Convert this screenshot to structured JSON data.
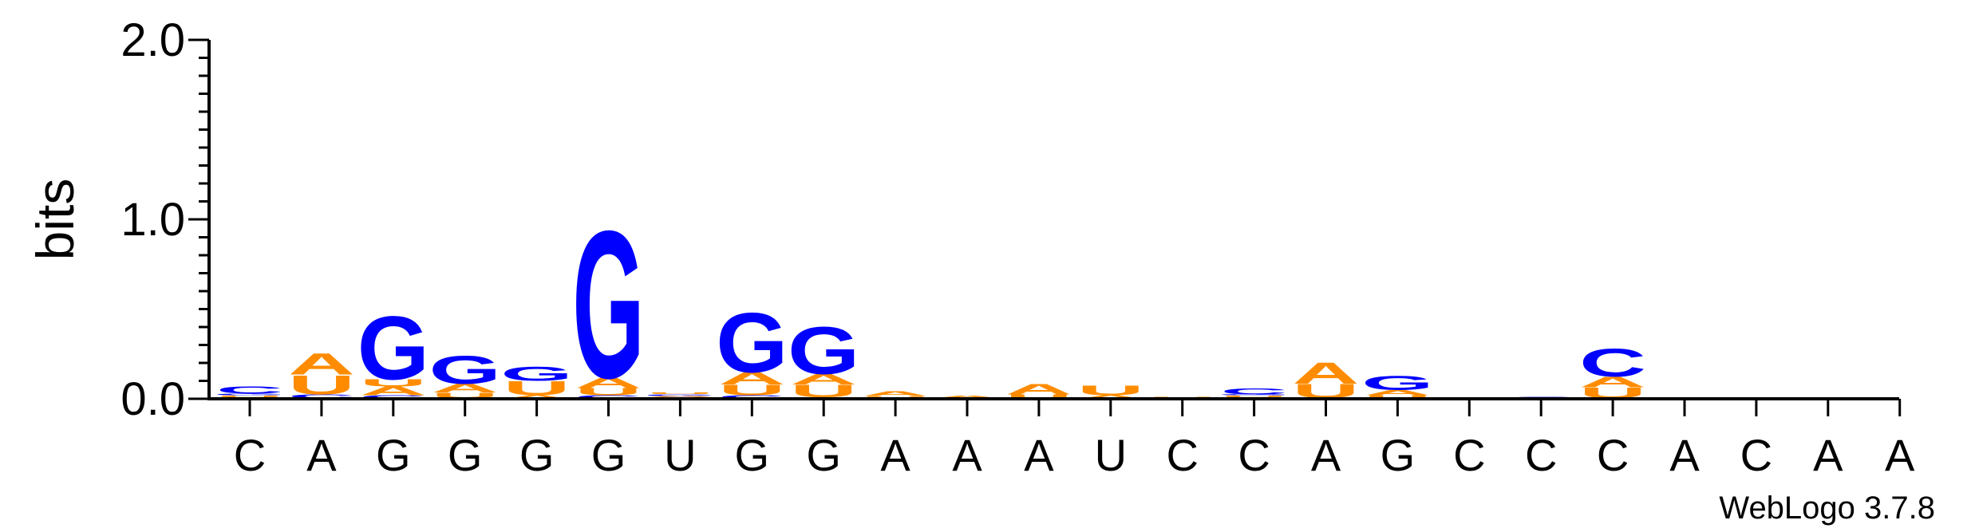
{
  "chart_data": {
    "type": "sequence-logo",
    "ylabel": "bits",
    "ylim": [
      0,
      2.0
    ],
    "yticks": [
      {
        "value": 0.0,
        "label": "0.0"
      },
      {
        "value": 1.0,
        "label": "1.0"
      },
      {
        "value": 2.0,
        "label": "2.0"
      }
    ],
    "xlabels": [
      "C",
      "A",
      "G",
      "G",
      "G",
      "G",
      "U",
      "G",
      "G",
      "A",
      "A",
      "A",
      "U",
      "C",
      "C",
      "A",
      "G",
      "C",
      "C",
      "C",
      "A",
      "C",
      "A",
      "A"
    ],
    "colors": {
      "A": "#ff8c00",
      "U": "#ff8c00",
      "G": "#0000ff",
      "C": "#0000ff"
    },
    "positions": [
      {
        "stack": [
          [
            "A",
            0.01
          ],
          [
            "U",
            0.01
          ],
          [
            "G",
            0.01
          ],
          [
            "C",
            0.04
          ]
        ]
      },
      {
        "stack": [
          [
            "G",
            0.005
          ],
          [
            "C",
            0.02
          ],
          [
            "U",
            0.11
          ],
          [
            "A",
            0.12
          ]
        ]
      },
      {
        "stack": [
          [
            "C",
            0.02
          ],
          [
            "A",
            0.05
          ],
          [
            "U",
            0.04
          ],
          [
            "G",
            0.36
          ]
        ]
      },
      {
        "stack": [
          [
            "C",
            0.005
          ],
          [
            "U",
            0.03
          ],
          [
            "A",
            0.05
          ],
          [
            "G",
            0.16
          ]
        ]
      },
      {
        "stack": [
          [
            "A",
            0.02
          ],
          [
            "U",
            0.08
          ],
          [
            "G",
            0.08
          ]
        ]
      },
      {
        "stack": [
          [
            "C",
            0.02
          ],
          [
            "U",
            0.04
          ],
          [
            "A",
            0.06
          ],
          [
            "G",
            0.84
          ]
        ]
      },
      {
        "stack": [
          [
            "C",
            0.008
          ],
          [
            "A",
            0.008
          ],
          [
            "G",
            0.01
          ],
          [
            "U",
            0.01
          ]
        ]
      },
      {
        "stack": [
          [
            "C",
            0.02
          ],
          [
            "U",
            0.06
          ],
          [
            "A",
            0.07
          ],
          [
            "G",
            0.34
          ]
        ]
      },
      {
        "stack": [
          [
            "C",
            0.01
          ],
          [
            "U",
            0.07
          ],
          [
            "A",
            0.06
          ],
          [
            "G",
            0.27
          ]
        ]
      },
      {
        "stack": [
          [
            "G",
            0.005
          ],
          [
            "U",
            0.01
          ],
          [
            "A",
            0.025
          ]
        ]
      },
      {
        "stack": [
          [
            "U",
            0.005
          ],
          [
            "A",
            0.015
          ]
        ]
      },
      {
        "stack": [
          [
            "G",
            0.005
          ],
          [
            "U",
            0.02
          ],
          [
            "A",
            0.06
          ]
        ]
      },
      {
        "stack": [
          [
            "A",
            0.02
          ],
          [
            "U",
            0.055
          ]
        ]
      },
      {
        "stack": [
          [
            "A",
            0.005
          ],
          [
            "U",
            0.005
          ]
        ]
      },
      {
        "stack": [
          [
            "A",
            0.01
          ],
          [
            "U",
            0.01
          ],
          [
            "G",
            0.005
          ],
          [
            "C",
            0.035
          ]
        ]
      },
      {
        "stack": [
          [
            "G",
            0.005
          ],
          [
            "U",
            0.08
          ],
          [
            "A",
            0.12
          ]
        ]
      },
      {
        "stack": [
          [
            "U",
            0.02
          ],
          [
            "A",
            0.03
          ],
          [
            "G",
            0.08
          ]
        ]
      },
      {
        "stack": [
          [
            "C",
            0.004
          ]
        ]
      },
      {
        "stack": [
          [
            "C",
            0.012
          ]
        ]
      },
      {
        "stack": [
          [
            "A",
            0.005
          ],
          [
            "U",
            0.06
          ],
          [
            "A",
            0.06
          ],
          [
            "C",
            0.16
          ]
        ]
      },
      {
        "stack": []
      },
      {
        "stack": []
      },
      {
        "stack": []
      },
      {
        "stack": []
      }
    ],
    "footer": "WebLogo 3.7.8"
  }
}
